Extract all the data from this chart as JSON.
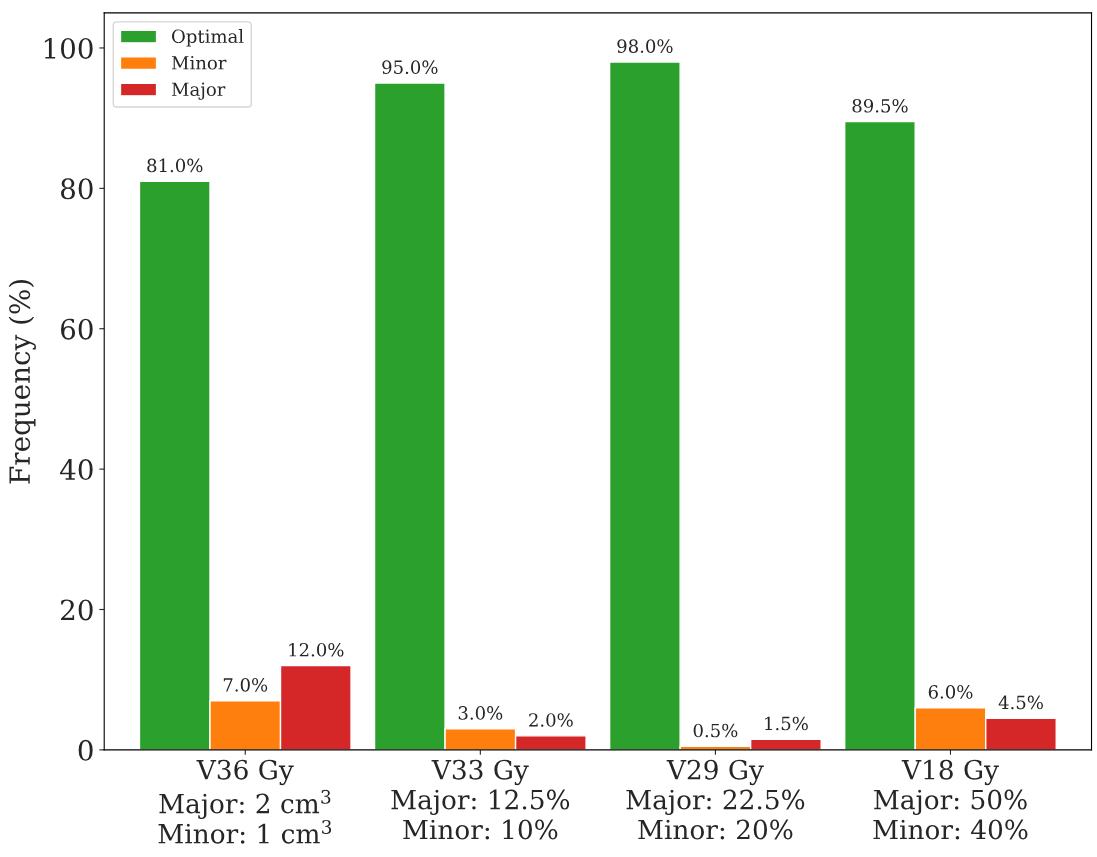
{
  "chart_data": {
    "type": "bar",
    "ylabel": "Frequency (%)",
    "categories": [
      "V36 Gy\nMajor: 2 cm$^{3}$\nMinor: 1 cm$^{3}$",
      "V33 Gy\nMajor: 12.5%\nMinor: 10%",
      "V29 Gy\nMajor: 22.5%\nMinor: 20%",
      "V18 Gy\nMajor: 50%\nMinor: 40%"
    ],
    "series": [
      {
        "name": "Optimal",
        "color": "#2ca02c",
        "values": [
          81.0,
          95.0,
          98.0,
          89.5
        ],
        "value_labels": [
          "81.0%",
          "95.0%",
          "98.0%",
          "89.5%"
        ]
      },
      {
        "name": "Minor",
        "color": "#ff7f0e",
        "values": [
          7.0,
          3.0,
          0.5,
          6.0
        ],
        "value_labels": [
          "7.0%",
          "3.0%",
          "0.5%",
          "6.0%"
        ]
      },
      {
        "name": "Major",
        "color": "#d62728",
        "values": [
          12.0,
          2.0,
          1.5,
          4.5
        ],
        "value_labels": [
          "12.0%",
          "2.0%",
          "1.5%",
          "4.5%"
        ]
      }
    ],
    "ylim": [
      0,
      105
    ],
    "yticks": [
      0,
      20,
      40,
      60,
      80,
      100
    ],
    "grid": false,
    "legend": "top left"
  }
}
